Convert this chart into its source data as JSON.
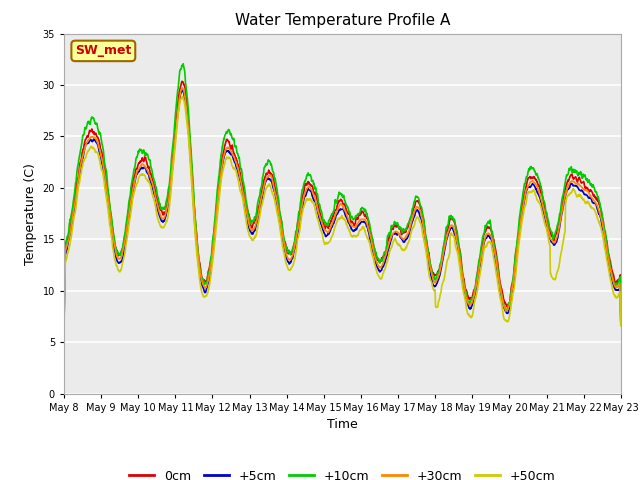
{
  "title": "Water Temperature Profile A",
  "xlabel": "Time",
  "ylabel": "Temperature (C)",
  "ylim": [
    0,
    35
  ],
  "yticks": [
    0,
    5,
    10,
    15,
    20,
    25,
    30,
    35
  ],
  "date_start": 8,
  "date_end": 23,
  "annotation_text": "SW_met",
  "annotation_color": "#cc0000",
  "annotation_bg": "#ffff99",
  "annotation_border": "#996600",
  "series": {
    "0cm": {
      "color": "#dd0000",
      "lw": 1.2
    },
    "+5cm": {
      "color": "#0000cc",
      "lw": 1.2
    },
    "+10cm": {
      "color": "#00cc00",
      "lw": 1.2
    },
    "+30cm": {
      "color": "#ff8800",
      "lw": 1.2
    },
    "+50cm": {
      "color": "#cccc00",
      "lw": 1.2
    }
  },
  "plot_bg": "#ebebeb"
}
